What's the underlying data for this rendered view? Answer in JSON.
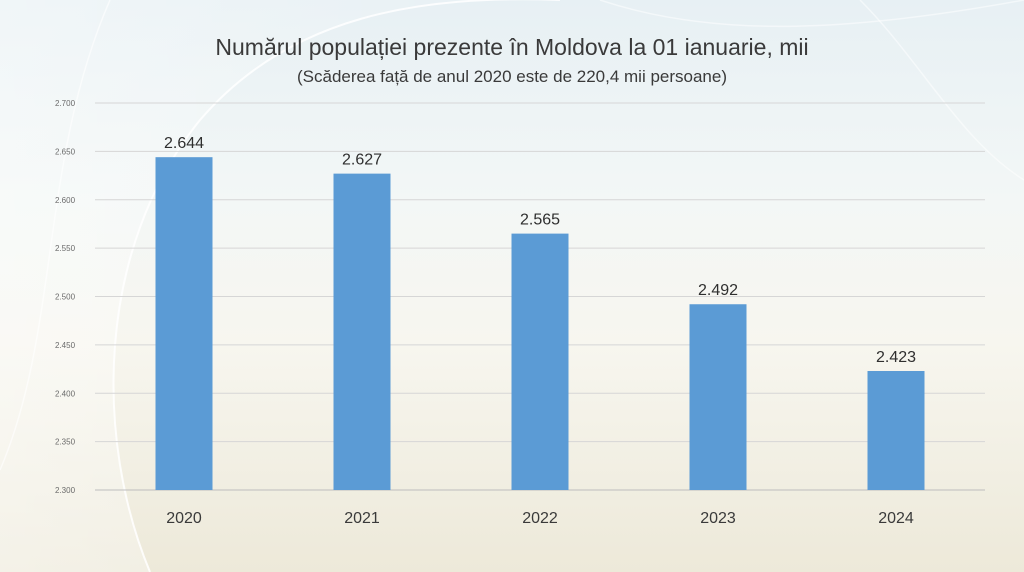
{
  "colors": {
    "bar": "#5b9bd5",
    "grid": "#d6d6d6",
    "axis": "#bdbdbd"
  },
  "chart_data": {
    "type": "bar",
    "title": "Numărul populației prezente în Moldova la 01 ianuarie, mii",
    "subtitle": "(Scăderea față de anul 2020 este de 220,4 mii persoane)",
    "categories": [
      "2020",
      "2021",
      "2022",
      "2023",
      "2024"
    ],
    "values": [
      2644,
      2627,
      2565,
      2492,
      2423
    ],
    "data_labels": [
      "2.644",
      "2.627",
      "2.565",
      "2.492",
      "2.423"
    ],
    "ylim": [
      2300,
      2700
    ],
    "yticks": [
      2300,
      2350,
      2400,
      2450,
      2500,
      2550,
      2600,
      2650,
      2700
    ],
    "ytick_labels": [
      "2.300",
      "2.350",
      "2.400",
      "2.450",
      "2.500",
      "2.550",
      "2.600",
      "2.650",
      "2.700"
    ],
    "xlabel": "",
    "ylabel": "",
    "grid": true,
    "legend": "none"
  }
}
